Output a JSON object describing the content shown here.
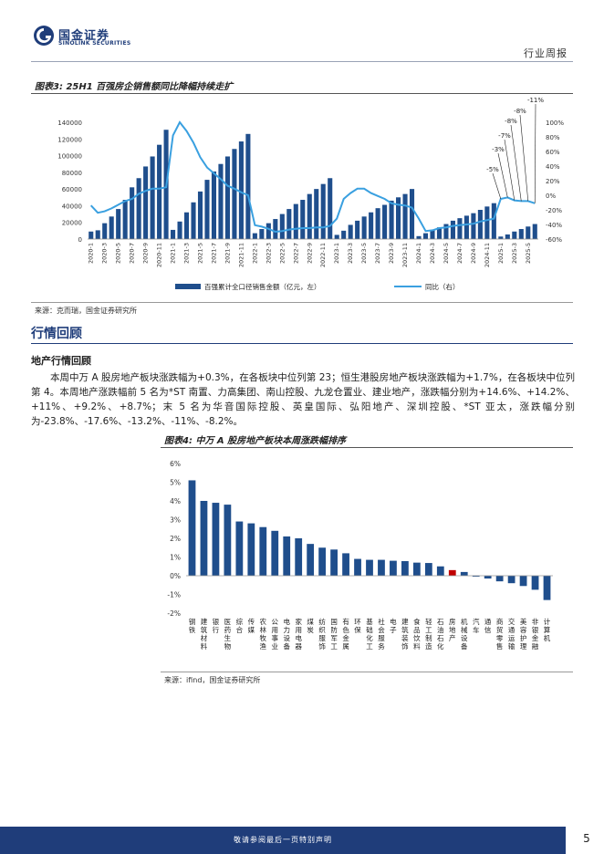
{
  "header": {
    "logo_cn": "国金证券",
    "logo_en": "SINOLINK SECURITIES",
    "report_type": "行业周报"
  },
  "figure3": {
    "title": "图表3: 25H1 百强房企销售额同比降幅持续走扩",
    "source": "来源：克而瑞，国金证券研究所"
  },
  "section": {
    "title": "行情回顾",
    "subtitle": "地产行情回顾",
    "paragraph": "本周中万 A 股房地产板块涨跌幅为+0.3%，在各板块中位列第 23；恒生港股房地产板块涨跌幅为+1.7%，在各板块中位列第 4。本周地产涨跌幅前 5 名为*ST 南置、力高集团、南山控股、九龙仓置业、建业地产，涨跌幅分别为+14.6%、+14.2%、+11%、+9.2%、+8.7%；末 5 名为华音国际控股、英皇国际、弘阳地产、深圳控股、*ST 亚太，涨跌幅分别为-23.8%、-17.6%、-13.2%、-11%、-8.2%。"
  },
  "figure4": {
    "title": "图表4: 中万 A 股房地产板块本周涨跌幅排序",
    "source": "来源：ifind，国金证券研究所"
  },
  "footer": {
    "disclaimer": "敬请参阅最后一页特别声明",
    "page": "5"
  },
  "colors": {
    "brand": "#1f3d7a",
    "bar": "#1f4e8c",
    "line": "#3aa0e0",
    "highlight": "#c00000"
  },
  "chart_data": [
    {
      "type": "bar+line",
      "title": "",
      "x": [
        "2020-1",
        "2020-2",
        "2020-3",
        "2020-4",
        "2020-5",
        "2020-6",
        "2020-7",
        "2020-8",
        "2020-9",
        "2020-10",
        "2020-11",
        "2020-12",
        "2021-1",
        "2021-2",
        "2021-3",
        "2021-4",
        "2021-5",
        "2021-6",
        "2021-7",
        "2021-8",
        "2021-9",
        "2021-10",
        "2021-11",
        "2021-12",
        "2022-1",
        "2022-2",
        "2022-3",
        "2022-4",
        "2022-5",
        "2022-6",
        "2022-7",
        "2022-8",
        "2022-9",
        "2022-10",
        "2022-11",
        "2022-12",
        "2023-1",
        "2023-2",
        "2023-3",
        "2023-4",
        "2023-5",
        "2023-6",
        "2023-7",
        "2023-8",
        "2023-9",
        "2023-10",
        "2023-11",
        "2023-12",
        "2024-1",
        "2024-2",
        "2024-3",
        "2024-4",
        "2024-5",
        "2024-6",
        "2024-7",
        "2024-8",
        "2024-9",
        "2024-10",
        "2024-11",
        "2024-12",
        "2025-1",
        "2025-2",
        "2025-3",
        "2025-4",
        "2025-5",
        "2025-6"
      ],
      "x_ticks": [
        "2020-1",
        "2020-3",
        "2020-5",
        "2020-7",
        "2020-9",
        "2020-11",
        "2021-1",
        "2021-3",
        "2021-5",
        "2021-7",
        "2021-9",
        "2021-11",
        "2022-1",
        "2022-3",
        "2022-5",
        "2022-7",
        "2022-9",
        "2022-11",
        "2023-1",
        "2023-3",
        "2023-5",
        "2023-7",
        "2023-9",
        "2023-11",
        "2024-1",
        "2024-3",
        "2024-5",
        "2024-7",
        "2024-9",
        "2024-11",
        "2025-1",
        "2025-3",
        "2025-5"
      ],
      "series": [
        {
          "name": "百强累计全口径销售金额（亿元，左）",
          "axis": "left",
          "kind": "bar",
          "values": [
            9000,
            10500,
            19000,
            27000,
            36000,
            47000,
            62000,
            73000,
            87000,
            99000,
            113000,
            131000,
            11000,
            21000,
            32000,
            44000,
            57000,
            71000,
            81000,
            90000,
            99000,
            108000,
            117000,
            126000,
            7000,
            12000,
            19000,
            24000,
            30000,
            36000,
            42000,
            47000,
            54000,
            60000,
            66000,
            73000,
            5000,
            10000,
            17000,
            22000,
            27000,
            32000,
            37000,
            41000,
            46000,
            50000,
            54000,
            60000,
            3500,
            7000,
            11000,
            14000,
            18000,
            22000,
            25000,
            28000,
            31000,
            35000,
            39000,
            43000,
            3000,
            5500,
            9000,
            12000,
            15000,
            18000
          ]
        },
        {
          "name": "同比（右）",
          "axis": "right",
          "kind": "line",
          "values": [
            -0.14,
            -0.24,
            -0.22,
            -0.18,
            -0.13,
            -0.08,
            -0.05,
            0.02,
            0.06,
            0.09,
            0.09,
            0.11,
            0.82,
            1.0,
            0.88,
            0.72,
            0.52,
            0.38,
            0.3,
            0.22,
            0.13,
            0.09,
            0.04,
            0.0,
            -0.41,
            -0.43,
            -0.46,
            -0.5,
            -0.49,
            -0.47,
            -0.46,
            -0.45,
            -0.45,
            -0.44,
            -0.44,
            -0.42,
            -0.32,
            -0.05,
            0.03,
            0.09,
            0.09,
            0.03,
            -0.01,
            -0.05,
            -0.11,
            -0.13,
            -0.14,
            -0.17,
            -0.32,
            -0.49,
            -0.48,
            -0.45,
            -0.44,
            -0.42,
            -0.41,
            -0.4,
            -0.39,
            -0.36,
            -0.34,
            -0.32,
            -0.05,
            -0.03,
            -0.07,
            -0.08,
            -0.08,
            -0.11
          ]
        }
      ],
      "ylim_left": [
        0,
        140000
      ],
      "ylim_right": [
        -0.6,
        1.0
      ],
      "y_ticks_left": [
        "0",
        "20000",
        "40000",
        "60000",
        "80000",
        "100000",
        "120000",
        "140000"
      ],
      "y_ticks_right": [
        "-60%",
        "-40%",
        "-20%",
        "0%",
        "20%",
        "40%",
        "60%",
        "80%",
        "100%"
      ],
      "annotations": [
        {
          "label": "-5%",
          "x": "2025-1"
        },
        {
          "label": "-3%",
          "x": "2025-2"
        },
        {
          "label": "-7%",
          "x": "2025-3"
        },
        {
          "label": "-8%",
          "x": "2025-4"
        },
        {
          "label": "-8%",
          "x": "2025-5"
        },
        {
          "label": "-11%",
          "x": "2025-6"
        }
      ],
      "legend_position": "bottom"
    },
    {
      "type": "bar",
      "title": "",
      "categories": [
        "钢铁",
        "建筑材料",
        "银行",
        "医药生物",
        "综合",
        "传媒",
        "农林牧渔",
        "公用事业",
        "电力设备",
        "家用电器",
        "煤炭",
        "纺织服饰",
        "国防军工",
        "有色金属",
        "环保",
        "基础化工",
        "社会服务",
        "电子",
        "建筑装饰",
        "食品饮料",
        "轻工制造",
        "石油石化",
        "房地产",
        "机械设备",
        "汽车",
        "通信",
        "商贸零售",
        "交通运输",
        "美容护理",
        "非银金融",
        "计算机"
      ],
      "values": [
        5.1,
        4.0,
        3.9,
        3.8,
        2.9,
        2.8,
        2.6,
        2.4,
        2.1,
        2.0,
        1.7,
        1.5,
        1.4,
        1.2,
        0.9,
        0.85,
        0.85,
        0.8,
        0.78,
        0.7,
        0.68,
        0.5,
        0.3,
        0.2,
        -0.05,
        -0.15,
        -0.3,
        -0.4,
        -0.55,
        -0.75,
        -1.3
      ],
      "highlight": "房地产",
      "ylim": [
        -2,
        6
      ],
      "y_ticks": [
        "-2%",
        "-1%",
        "0%",
        "1%",
        "2%",
        "3%",
        "4%",
        "5%",
        "6%"
      ]
    }
  ]
}
